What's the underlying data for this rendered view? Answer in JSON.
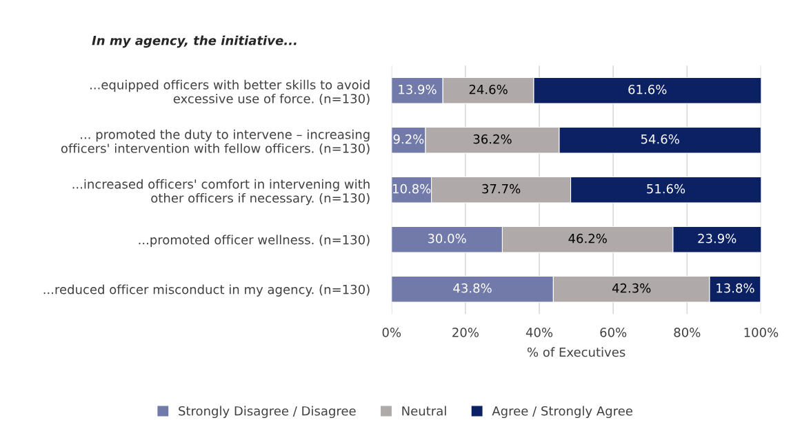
{
  "chart_data": {
    "type": "bar",
    "orientation": "horizontal",
    "stacked": true,
    "title": "In my agency, the initiative...",
    "xlabel": "% of Executives",
    "categories": [
      "...equipped officers with better skills to avoid excessive use of force. (n=130)",
      "... promoted the duty to intervene – increasing officers' intervention with fellow officers. (n=130)",
      "...increased officers' comfort in intervening with other officers if necessary. (n=130)",
      "...promoted officer wellness. (n=130)",
      "...reduced officer misconduct in my agency. (n=130)"
    ],
    "series": [
      {
        "name": "Strongly Disagree / Disagree",
        "color": "#717aa8",
        "values": [
          13.9,
          9.2,
          10.8,
          30.0,
          43.8
        ],
        "value_labels": [
          "13.9%",
          "9.2%",
          "10.8%",
          "30.0%",
          "43.8%"
        ]
      },
      {
        "name": "Neutral",
        "color": "#afaaa9",
        "values": [
          24.6,
          36.2,
          37.7,
          46.2,
          42.3
        ],
        "value_labels": [
          "24.6%",
          "36.2%",
          "37.7%",
          "46.2%",
          "42.3%"
        ]
      },
      {
        "name": "Agree / Strongly Agree",
        "color": "#0c2163",
        "values": [
          61.6,
          54.6,
          51.6,
          23.9,
          13.8
        ],
        "value_labels": [
          "61.6%",
          "54.6%",
          "51.6%",
          "23.9%",
          "13.8%"
        ]
      }
    ],
    "xlim": [
      0,
      100
    ],
    "xticks": [
      {
        "value": 0,
        "label": "0%"
      },
      {
        "value": 20,
        "label": "20%"
      },
      {
        "value": 40,
        "label": "40%"
      },
      {
        "value": 60,
        "label": "60%"
      },
      {
        "value": 80,
        "label": "80%"
      },
      {
        "value": 100,
        "label": "100%"
      }
    ],
    "grid": "x",
    "legend": "bottom"
  }
}
